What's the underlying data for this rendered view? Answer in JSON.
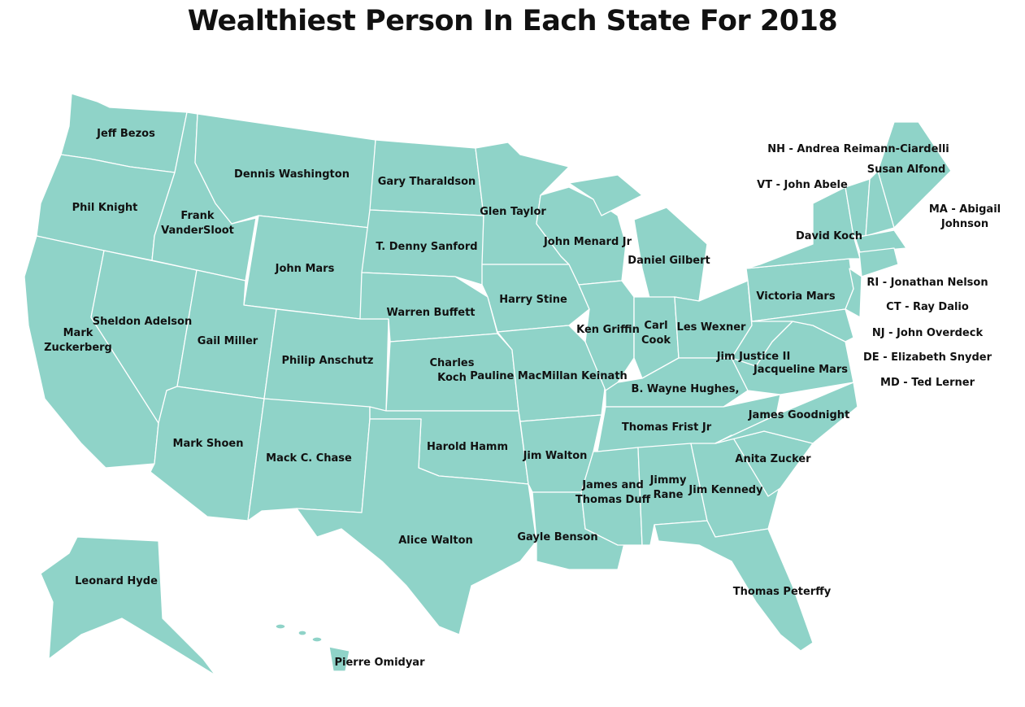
{
  "title": "Wealthiest Person In Each State For 2018",
  "colors": {
    "state_fill": "#8fd3c8",
    "border": "#ffffff",
    "text": "#111111"
  },
  "labels": [
    [
      "Jeff Bezos"
    ],
    [
      "Phil Knight"
    ],
    [
      "Mark",
      "Zuckerberg"
    ],
    [
      "Sheldon Adelson"
    ],
    [
      "Frank",
      "VanderSloot"
    ],
    [
      "Dennis Washington"
    ],
    [
      "John Mars"
    ],
    [
      "Gail Miller"
    ],
    [
      "Philip Anschutz"
    ],
    [
      "Mark Shoen"
    ],
    [
      "Mack C. Chase"
    ],
    [
      "Gary Tharaldson"
    ],
    [
      "T. Denny Sanford"
    ],
    [
      "Warren Buffett"
    ],
    [
      "Charles",
      "Koch"
    ],
    [
      "Harold Hamm"
    ],
    [
      "Alice Walton"
    ],
    [
      "Glen Taylor"
    ],
    [
      "Harry Stine"
    ],
    [
      "Pauline MacMillan Keinath"
    ],
    [
      "Jim Walton"
    ],
    [
      "Gayle Benson"
    ],
    [
      "John Menard Jr"
    ],
    [
      "Ken Griffin"
    ],
    [
      "Daniel Gilbert"
    ],
    [
      "Carl",
      "Cook"
    ],
    [
      "Les Wexner"
    ],
    [
      "B. Wayne Hughes,"
    ],
    [
      "Thomas Frist Jr"
    ],
    [
      "James and",
      "Thomas Duff"
    ],
    [
      "Jimmy",
      "Rane"
    ],
    [
      "Jim Kennedy"
    ],
    [
      "Thomas Peterffy"
    ],
    [
      "Anita Zucker"
    ],
    [
      "James Goodnight"
    ],
    [
      "Jacqueline Mars"
    ],
    [
      "Jim Justice II"
    ],
    [
      "Victoria Mars"
    ],
    [
      "David Koch"
    ],
    [
      "Susan Alfond"
    ],
    [
      "Leonard Hyde"
    ],
    [
      "Pierre Omidyar"
    ],
    [
      "NH - Andrea Reimann-Ciardelli"
    ],
    [
      "VT - John Abele"
    ],
    [
      "MA - Abigail",
      "Johnson"
    ],
    [
      "RI - Jonathan Nelson"
    ],
    [
      "CT - Ray Dalio"
    ],
    [
      "NJ - John Overdeck"
    ],
    [
      "DE - Elizabeth Snyder"
    ],
    [
      "MD - Ted Lerner"
    ]
  ]
}
